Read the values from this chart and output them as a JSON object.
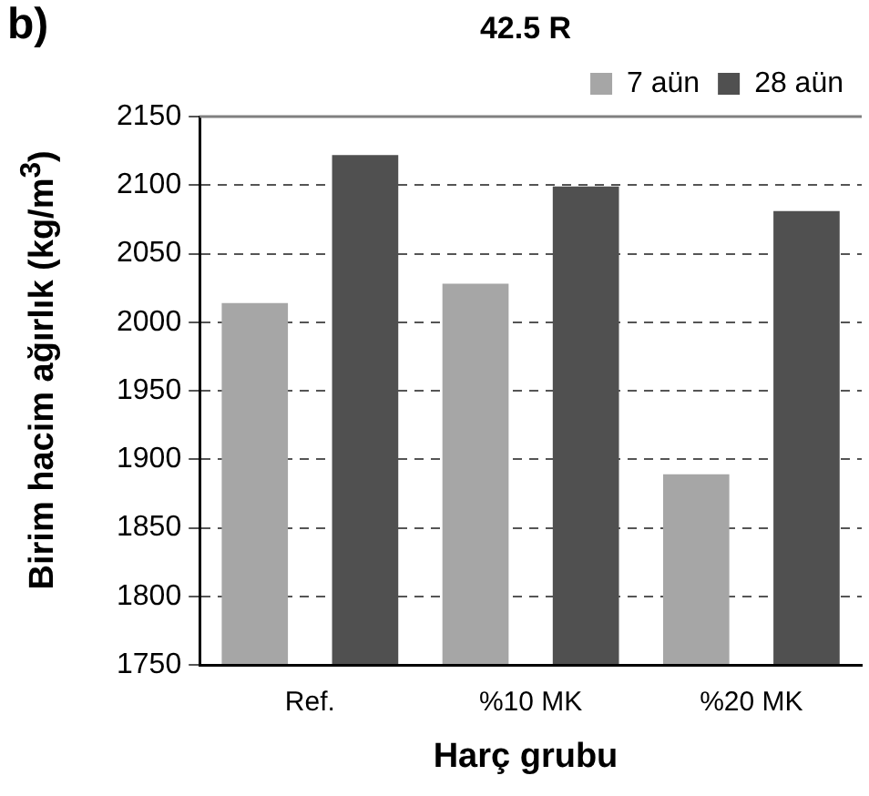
{
  "chart_data": {
    "type": "bar",
    "title": "42.5 R",
    "xlabel": "Harç grubu",
    "ylabel": "Birim hacim ağırlık (kg/m$^{3}$)",
    "annotations": [
      "b)"
    ],
    "categories": [
      "Ref.",
      "%10 MK",
      "%20 MK"
    ],
    "series": [
      {
        "name": "7 aün",
        "color": "#a6a6a6",
        "values": [
          2014,
          2028,
          1889
        ]
      },
      {
        "name": "28 aün",
        "color": "#505050",
        "values": [
          2122,
          2099,
          2081
        ]
      }
    ],
    "ylim": [
      1750,
      2150
    ],
    "yticks": [
      1750,
      1800,
      1850,
      1900,
      1950,
      2000,
      2050,
      2100,
      2150
    ],
    "grid": "y",
    "legend": "top right"
  }
}
